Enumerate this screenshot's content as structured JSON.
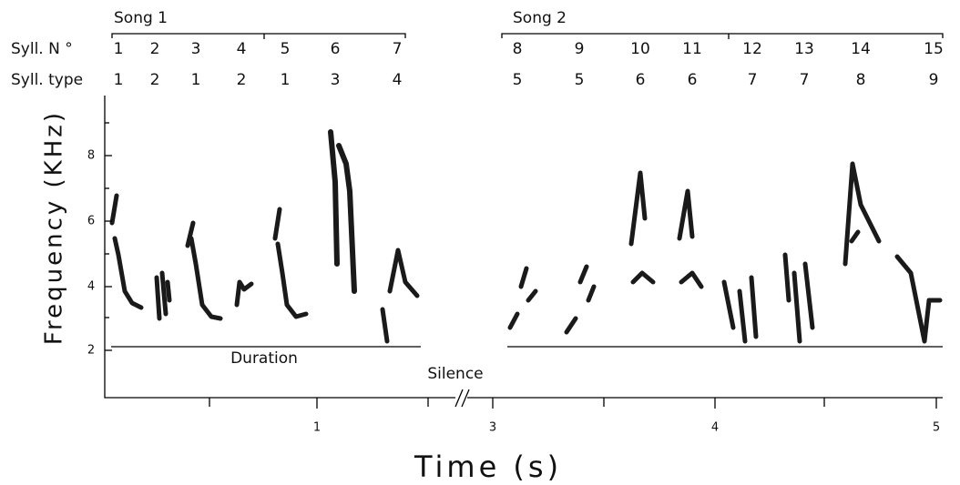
{
  "songs": [
    "Song 1",
    "Song 2"
  ],
  "row_labels": [
    "Syll. N °",
    "Syll. type"
  ],
  "syllables": [
    {
      "n": "1",
      "type": "1"
    },
    {
      "n": "2",
      "type": "2"
    },
    {
      "n": "3",
      "type": "1"
    },
    {
      "n": "4",
      "type": "2"
    },
    {
      "n": "5",
      "type": "1"
    },
    {
      "n": "6",
      "type": "3"
    },
    {
      "n": "7",
      "type": "4"
    },
    {
      "n": "8",
      "type": "5"
    },
    {
      "n": "9",
      "type": "5"
    },
    {
      "n": "10",
      "type": "6"
    },
    {
      "n": "11",
      "type": "6"
    },
    {
      "n": "12",
      "type": "7"
    },
    {
      "n": "13",
      "type": "7"
    },
    {
      "n": "14",
      "type": "8"
    },
    {
      "n": "15",
      "type": "9"
    }
  ],
  "y_axis": {
    "label": "Frequency (KHz)",
    "ticks": [
      "2",
      "4",
      "6",
      "8"
    ]
  },
  "x_axis": {
    "label": "Time (s)",
    "ticks": [
      "1",
      "3",
      "4",
      "5"
    ]
  },
  "annotations": {
    "duration": "Duration",
    "silence": "Silence"
  }
}
